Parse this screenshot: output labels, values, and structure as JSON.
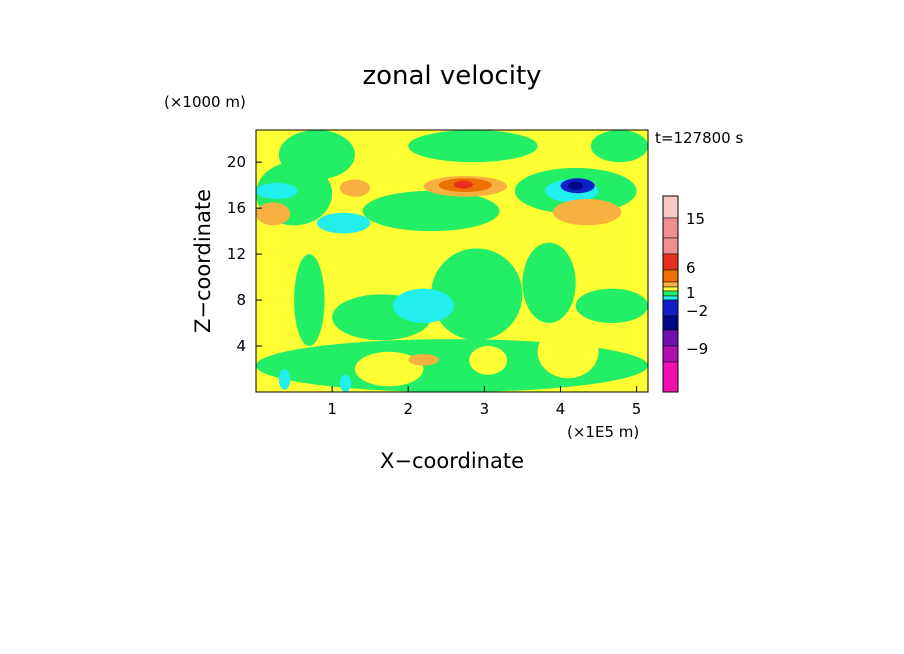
{
  "chart_data": {
    "type": "heatmap",
    "title": "zonal velocity",
    "xlabel": "X−coordinate",
    "ylabel": "Z−coordinate",
    "x_unit_label": "(×1E5 m)",
    "y_unit_label": "(×1000 m)",
    "time_label": "t=127800 s",
    "xlim": [
      0,
      5.15
    ],
    "ylim": [
      0,
      22.8
    ],
    "x_ticks": [
      "1",
      "2",
      "3",
      "4",
      "5"
    ],
    "y_ticks": [
      "4",
      "8",
      "12",
      "16",
      "20"
    ],
    "background_level": "yellow",
    "levels": [
      {
        "name": "pink2",
        "color": "#f8c8c8"
      },
      {
        "name": "pink1",
        "color": "#ee9090"
      },
      {
        "name": "red",
        "color": "#e83020"
      },
      {
        "name": "orange",
        "color": "#ee7000"
      },
      {
        "name": "lightorange",
        "color": "#f8b040"
      },
      {
        "name": "yellow",
        "color": "#ffff33"
      },
      {
        "name": "green",
        "color": "#22ee66"
      },
      {
        "name": "cyan",
        "color": "#22eeee"
      },
      {
        "name": "blue",
        "color": "#1020c8"
      },
      {
        "name": "navy",
        "color": "#00088a"
      },
      {
        "name": "purple",
        "color": "#7010b0"
      },
      {
        "name": "violet",
        "color": "#b010b0"
      },
      {
        "name": "magenta",
        "color": "#f010b0"
      }
    ],
    "regions": [
      {
        "level": "green",
        "x": [
          0,
          5.15
        ],
        "y": [
          0,
          4.6
        ]
      },
      {
        "level": "green",
        "x": [
          0.5,
          0.9
        ],
        "y": [
          4,
          12
        ]
      },
      {
        "level": "green",
        "x": [
          1,
          2.3
        ],
        "y": [
          4.5,
          8.5
        ]
      },
      {
        "level": "green",
        "x": [
          2.3,
          3.5
        ],
        "y": [
          4.5,
          12.5
        ]
      },
      {
        "level": "green",
        "x": [
          3.5,
          4.2
        ],
        "y": [
          6,
          13
        ]
      },
      {
        "level": "green",
        "x": [
          4.2,
          5.15
        ],
        "y": [
          6,
          9
        ]
      },
      {
        "level": "green",
        "x": [
          0,
          1.0
        ],
        "y": [
          14.5,
          20
        ]
      },
      {
        "level": "green",
        "x": [
          1.4,
          3.2
        ],
        "y": [
          14,
          17.5
        ]
      },
      {
        "level": "green",
        "x": [
          3.4,
          5.0
        ],
        "y": [
          15.5,
          19.5
        ]
      },
      {
        "level": "green",
        "x": [
          2.0,
          3.7
        ],
        "y": [
          20,
          22.8
        ]
      },
      {
        "level": "green",
        "x": [
          0.3,
          1.3
        ],
        "y": [
          18.5,
          22.8
        ]
      },
      {
        "level": "green",
        "x": [
          4.4,
          5.15
        ],
        "y": [
          20,
          22.8
        ]
      },
      {
        "level": "yellow",
        "x": [
          3.7,
          4.5
        ],
        "y": [
          1.2,
          5.8
        ]
      },
      {
        "level": "yellow",
        "x": [
          1.3,
          2.2
        ],
        "y": [
          0.5,
          3.5
        ]
      },
      {
        "level": "yellow",
        "x": [
          2.8,
          3.3
        ],
        "y": [
          1.5,
          4.0
        ]
      },
      {
        "level": "yellow",
        "x": [
          0,
          0.5
        ],
        "y": [
          5,
          11
        ]
      },
      {
        "level": "cyan",
        "x": [
          1.8,
          2.6
        ],
        "y": [
          6,
          9
        ]
      },
      {
        "level": "cyan",
        "x": [
          0,
          0.55
        ],
        "y": [
          16.8,
          18.2
        ]
      },
      {
        "level": "cyan",
        "x": [
          0.8,
          1.5
        ],
        "y": [
          13.8,
          15.6
        ]
      },
      {
        "level": "cyan",
        "x": [
          3.8,
          4.5
        ],
        "y": [
          16.5,
          18.5
        ]
      },
      {
        "level": "cyan",
        "x": [
          0.3,
          0.45
        ],
        "y": [
          0.2,
          2.0
        ]
      },
      {
        "level": "cyan",
        "x": [
          1.1,
          1.25
        ],
        "y": [
          0,
          1.5
        ]
      },
      {
        "level": "lightorange",
        "x": [
          2.2,
          3.3
        ],
        "y": [
          17.0,
          18.8
        ]
      },
      {
        "level": "lightorange",
        "x": [
          0,
          0.45
        ],
        "y": [
          14.5,
          16.5
        ]
      },
      {
        "level": "lightorange",
        "x": [
          3.9,
          4.8
        ],
        "y": [
          14.5,
          16.8
        ]
      },
      {
        "level": "lightorange",
        "x": [
          2.0,
          2.4
        ],
        "y": [
          2.3,
          3.3
        ]
      },
      {
        "level": "lightorange",
        "x": [
          1.1,
          1.5
        ],
        "y": [
          17,
          18.5
        ]
      },
      {
        "level": "orange",
        "x": [
          2.4,
          3.1
        ],
        "y": [
          17.4,
          18.6
        ]
      },
      {
        "level": "red",
        "x": [
          2.6,
          2.85
        ],
        "y": [
          17.7,
          18.4
        ]
      },
      {
        "level": "blue",
        "x": [
          4.0,
          4.45
        ],
        "y": [
          17.3,
          18.6
        ]
      },
      {
        "level": "navy",
        "x": [
          4.1,
          4.3
        ],
        "y": [
          17.6,
          18.3
        ]
      }
    ],
    "colorbar_labels": [
      "15",
      "6",
      "1",
      "−2",
      "−9"
    ]
  }
}
